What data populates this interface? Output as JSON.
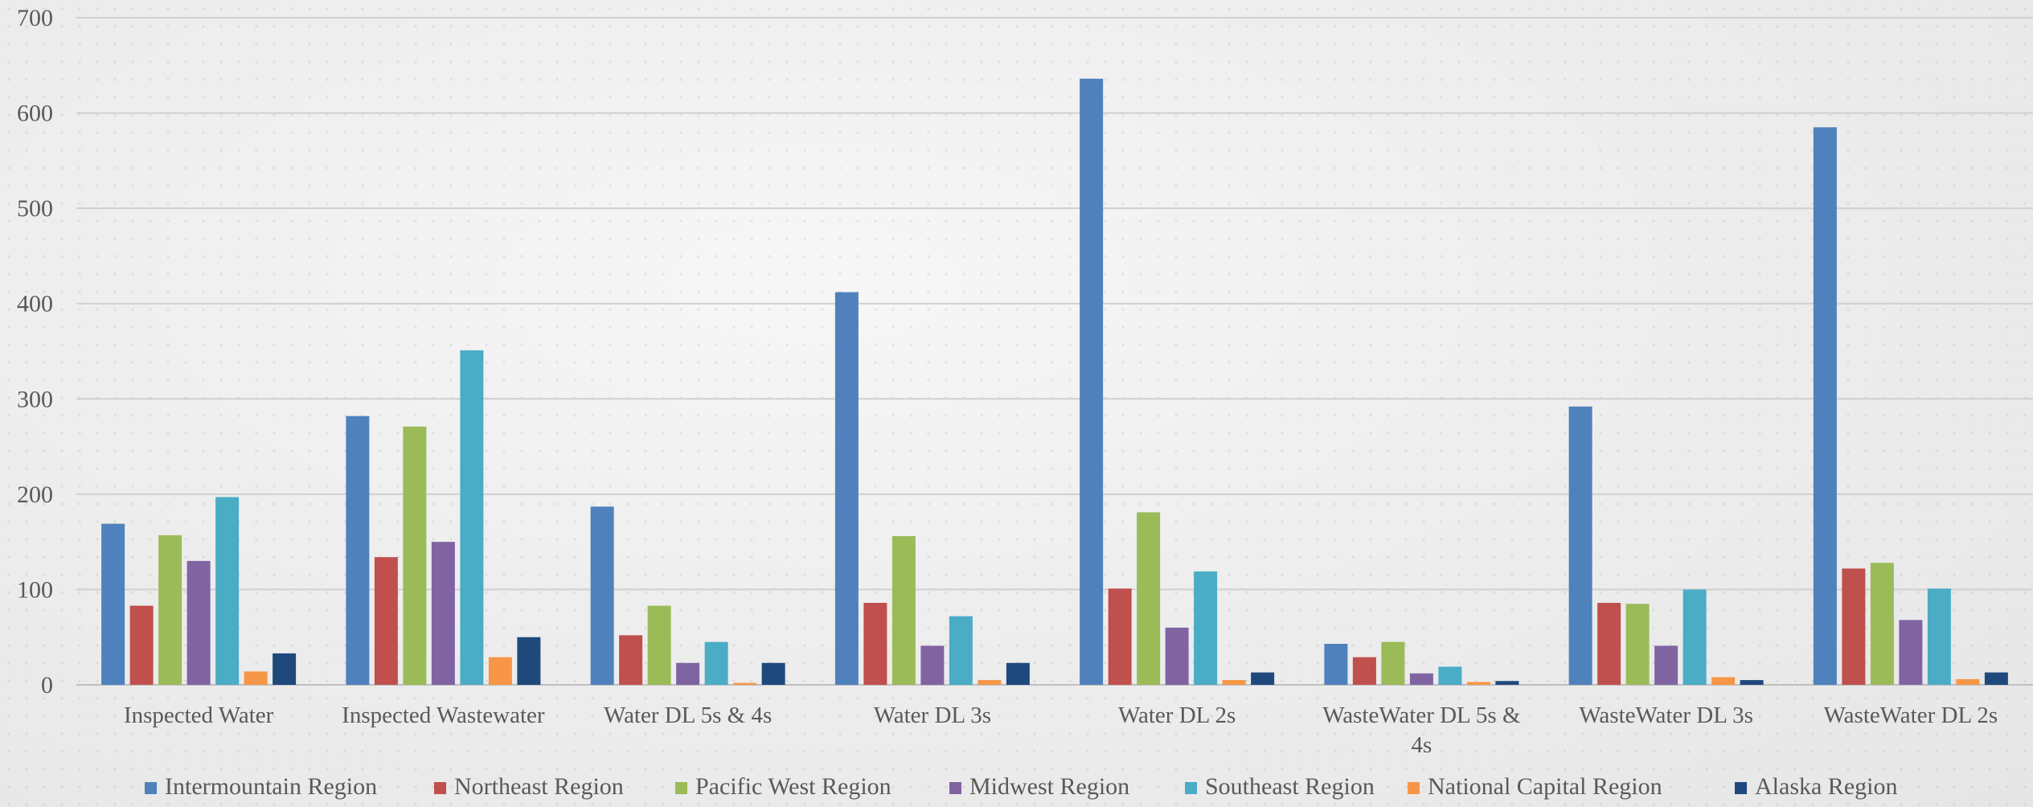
{
  "chart_data": {
    "type": "bar",
    "categories": [
      "Inspected Water",
      "Inspected Wastewater",
      "Water DL 5s & 4s",
      "Water DL 3s",
      "Water DL 2s",
      "WasteWater DL 5s & 4s",
      "WasteWater DL 3s",
      "WasteWater DL 2s"
    ],
    "series": [
      {
        "name": "Intermountain Region",
        "color": "#4f81bd",
        "values": [
          169,
          282,
          187,
          412,
          636,
          43,
          292,
          585
        ]
      },
      {
        "name": "Northeast Region",
        "color": "#c0504d",
        "values": [
          83,
          134,
          52,
          86,
          101,
          29,
          86,
          122
        ]
      },
      {
        "name": "Pacific West Region",
        "color": "#9bbb59",
        "values": [
          157,
          271,
          83,
          156,
          181,
          45,
          85,
          128
        ]
      },
      {
        "name": "Midwest Region",
        "color": "#8064a2",
        "values": [
          130,
          150,
          23,
          41,
          60,
          12,
          41,
          68
        ]
      },
      {
        "name": "Southeast Region",
        "color": "#4bacc6",
        "values": [
          197,
          351,
          45,
          72,
          119,
          19,
          100,
          101
        ]
      },
      {
        "name": "National Capital Region",
        "color": "#f79646",
        "values": [
          14,
          29,
          2,
          5,
          5,
          3,
          8,
          6
        ]
      },
      {
        "name": "Alaska Region",
        "color": "#1f497d",
        "values": [
          33,
          50,
          23,
          23,
          13,
          4,
          5,
          13
        ]
      }
    ],
    "yticks": [
      0,
      100,
      200,
      300,
      400,
      500,
      600,
      700
    ],
    "ylim": [
      0,
      700
    ],
    "grid": true,
    "legend_position": "bottom"
  }
}
